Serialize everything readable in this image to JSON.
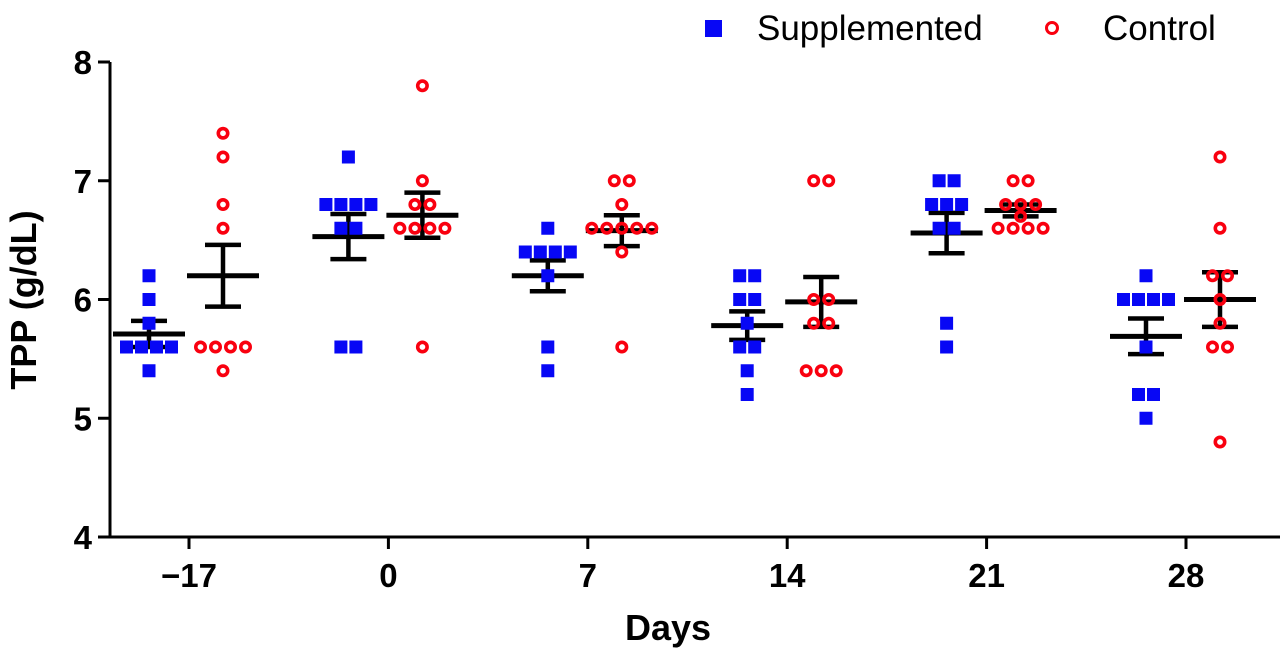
{
  "figure": {
    "background": "#ffffff",
    "axis_color": "#000000"
  },
  "legend": {
    "supplemented_label": "Supplemented",
    "control_label": "Control"
  },
  "chart_data": {
    "type": "scatter",
    "title": "",
    "xlabel": "Days",
    "ylabel": "TPP (g/dL)",
    "x_categories": [
      "−17",
      "0",
      "7",
      "14",
      "21",
      "28"
    ],
    "ylim": [
      4,
      8
    ],
    "yticks": [
      4,
      5,
      6,
      7,
      8
    ],
    "grid": false,
    "legend_position": "top-right",
    "error_bar_style": "mean ± SEM, black caps and mean line",
    "series": [
      {
        "name": "Supplemented",
        "marker": "filled-square",
        "color": "#0707F5",
        "groups": [
          {
            "day": "−17",
            "points": [
              6.2,
              6.0,
              5.8,
              5.6,
              5.6,
              5.6,
              5.6,
              5.4
            ],
            "mean": 5.71,
            "err_top": 5.82,
            "err_bot": 5.6
          },
          {
            "day": "0",
            "points": [
              7.2,
              6.8,
              6.8,
              6.8,
              6.8,
              6.6,
              6.6,
              5.6,
              5.6
            ],
            "mean": 6.53,
            "err_top": 6.72,
            "err_bot": 6.34
          },
          {
            "day": "7",
            "points": [
              6.6,
              6.4,
              6.4,
              6.4,
              6.4,
              6.2,
              5.6,
              5.4
            ],
            "mean": 6.2,
            "err_top": 6.33,
            "err_bot": 6.07
          },
          {
            "day": "14",
            "points": [
              6.2,
              6.2,
              6.0,
              6.0,
              5.8,
              5.6,
              5.6,
              5.4,
              5.2
            ],
            "mean": 5.78,
            "err_top": 5.9,
            "err_bot": 5.66
          },
          {
            "day": "21",
            "points": [
              7.0,
              7.0,
              6.8,
              6.8,
              6.8,
              6.6,
              6.6,
              5.8,
              5.6
            ],
            "mean": 6.56,
            "err_top": 6.73,
            "err_bot": 6.39
          },
          {
            "day": "28",
            "points": [
              6.2,
              6.0,
              6.0,
              6.0,
              6.0,
              5.6,
              5.2,
              5.2,
              5.0
            ],
            "mean": 5.69,
            "err_top": 5.84,
            "err_bot": 5.54
          }
        ]
      },
      {
        "name": "Control",
        "marker": "open-circle",
        "color": "#F9000F",
        "groups": [
          {
            "day": "−17",
            "points": [
              7.4,
              7.2,
              6.8,
              6.6,
              5.6,
              5.6,
              5.6,
              5.6,
              5.4
            ],
            "mean": 6.2,
            "err_top": 6.46,
            "err_bot": 5.94
          },
          {
            "day": "0",
            "points": [
              7.8,
              7.0,
              6.8,
              6.8,
              6.6,
              6.6,
              6.6,
              6.6,
              5.6
            ],
            "mean": 6.71,
            "err_top": 6.9,
            "err_bot": 6.52
          },
          {
            "day": "7",
            "points": [
              7.0,
              7.0,
              6.8,
              6.6,
              6.6,
              6.6,
              6.6,
              6.6,
              6.4,
              5.6
            ],
            "mean": 6.58,
            "err_top": 6.71,
            "err_bot": 6.45
          },
          {
            "day": "14",
            "points": [
              7.0,
              7.0,
              6.0,
              6.0,
              5.8,
              5.8,
              5.4,
              5.4,
              5.4
            ],
            "mean": 5.98,
            "err_top": 6.19,
            "err_bot": 5.77
          },
          {
            "day": "21",
            "points": [
              7.0,
              7.0,
              6.8,
              6.8,
              6.8,
              6.7,
              6.6,
              6.6,
              6.6,
              6.6
            ],
            "mean": 6.75,
            "err_top": 6.8,
            "err_bot": 6.7
          },
          {
            "day": "28",
            "points": [
              7.2,
              6.6,
              6.2,
              6.2,
              6.0,
              5.8,
              5.6,
              5.6,
              4.8
            ],
            "mean": 6.0,
            "err_top": 6.23,
            "err_bot": 5.77
          }
        ]
      }
    ]
  }
}
